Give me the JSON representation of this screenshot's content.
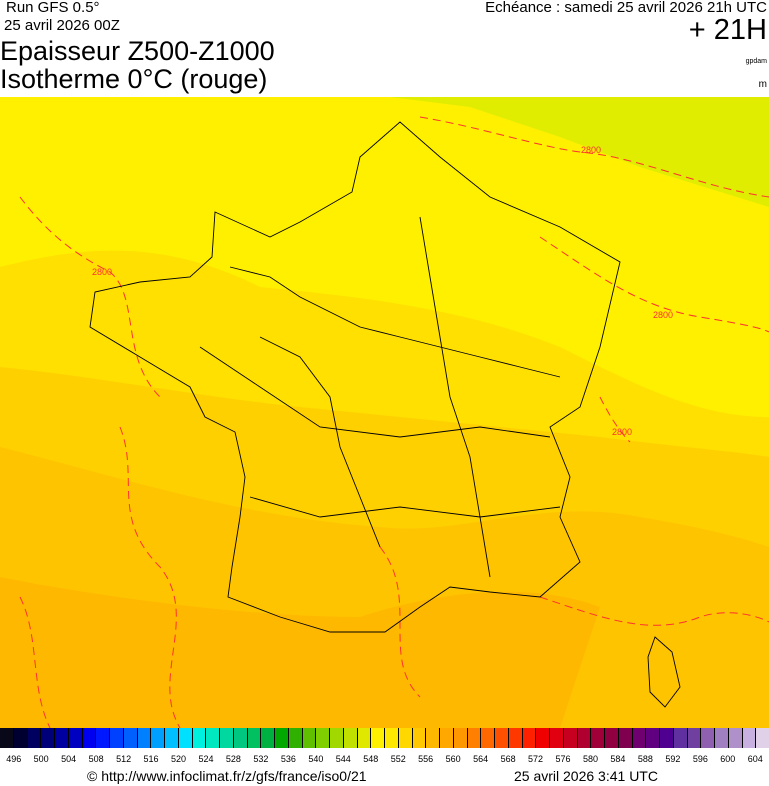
{
  "header": {
    "run": "Run GFS 0.5°",
    "run_date": "25 avril 2026 00Z",
    "title_line1": "Epaisseur Z500-Z1000",
    "title_line2": "Isotherme 0°C (rouge)",
    "echeance": "Echéance : samedi 25 avril 2026 21h UTC",
    "lead": "+ 21H",
    "unit_thickness": "gpdam",
    "unit_iso": "m"
  },
  "map": {
    "contour_labels": [
      "2800",
      "2800",
      "2800",
      "2800"
    ],
    "contour_color": "#ff3030",
    "region_colors": [
      "#e0ec00",
      "#fff000",
      "#ffe000",
      "#ffd000",
      "#ffc400",
      "#ffb800"
    ]
  },
  "colorbar": {
    "labels": [
      "496",
      "500",
      "504",
      "508",
      "512",
      "516",
      "520",
      "524",
      "528",
      "532",
      "536",
      "540",
      "544",
      "548",
      "552",
      "556",
      "560",
      "564",
      "568",
      "572",
      "576",
      "580",
      "584",
      "588",
      "592",
      "596",
      "600",
      "604"
    ],
    "colors": [
      "#080818",
      "#000030",
      "#000060",
      "#000078",
      "#0000a0",
      "#0000c0",
      "#0000f0",
      "#0018ff",
      "#0040ff",
      "#0060ff",
      "#0080ff",
      "#00a0ff",
      "#00c0ff",
      "#00e0ff",
      "#00f0e0",
      "#00e8c0",
      "#00d8a0",
      "#00c880",
      "#00c060",
      "#00b040",
      "#00a800",
      "#30b000",
      "#60c000",
      "#80d000",
      "#a0d800",
      "#c0e000",
      "#e0e800",
      "#fff000",
      "#ffe800",
      "#ffd800",
      "#ffc800",
      "#ffb800",
      "#ffa800",
      "#ff9800",
      "#ff8000",
      "#ff6800",
      "#ff5000",
      "#ff3800",
      "#ff2000",
      "#f00000",
      "#e00010",
      "#c80020",
      "#b00030",
      "#a00038",
      "#900040",
      "#800050",
      "#700070",
      "#600080",
      "#500090",
      "#6030a0",
      "#7040a0",
      "#9060b0",
      "#a080c0",
      "#b090c8",
      "#c8b0e0",
      "#e0d0e8"
    ]
  },
  "footer": {
    "credit": "© http://www.infoclimat.fr/z/gfs/france/iso0/21",
    "generated": "25 avril 2026  3:41 UTC"
  }
}
